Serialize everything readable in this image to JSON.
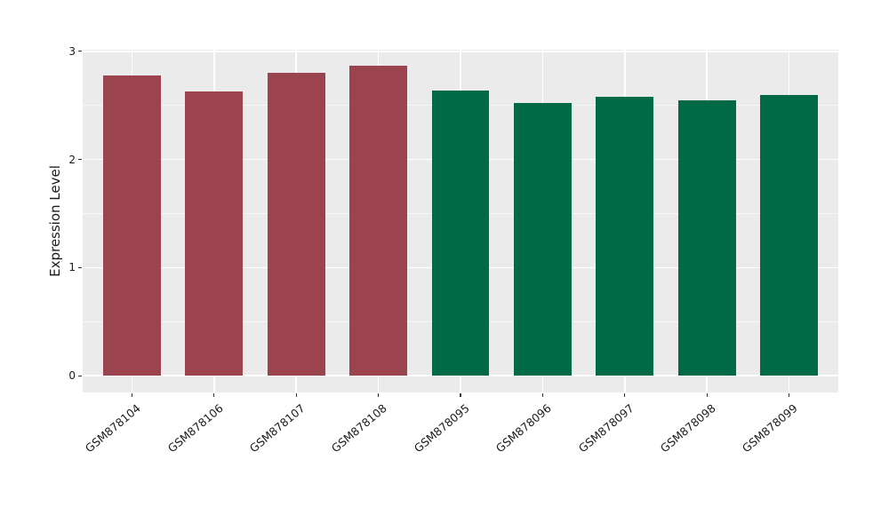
{
  "chart_data": {
    "type": "bar",
    "title": "",
    "xlabel": "",
    "ylabel": "Expression Level",
    "categories": [
      "GSM878104",
      "GSM878106",
      "GSM878107",
      "GSM878108",
      "GSM878095",
      "GSM878096",
      "GSM878097",
      "GSM878098",
      "GSM878099"
    ],
    "values": [
      2.78,
      2.63,
      2.8,
      2.87,
      2.64,
      2.52,
      2.58,
      2.55,
      2.6
    ],
    "bar_colors": [
      "#9B4450",
      "#9B4450",
      "#9B4450",
      "#9B4450",
      "#006A46",
      "#006A46",
      "#006A46",
      "#006A46",
      "#006A46"
    ],
    "groups": [
      {
        "name": "maroon-group",
        "color": "#9B4450",
        "categories": [
          "GSM878104",
          "GSM878106",
          "GSM878107",
          "GSM878108"
        ]
      },
      {
        "name": "green-group",
        "color": "#006A46",
        "categories": [
          "GSM878095",
          "GSM878096",
          "GSM878097",
          "GSM878098",
          "GSM878099"
        ]
      }
    ],
    "ytick_labels": [
      "0",
      "1",
      "2",
      "3"
    ],
    "ytick_values": [
      0,
      1,
      2,
      3
    ],
    "minor_ytick_values": [
      0.5,
      1.5,
      2.5
    ],
    "ylim": [
      -0.155,
      3.015
    ],
    "grid": true,
    "legend_position": "none",
    "panel_bg": "#EBEBEB",
    "grid_color": "#FFFFFF",
    "tick_color": "#333333",
    "text_color": "#1A1A1A"
  }
}
